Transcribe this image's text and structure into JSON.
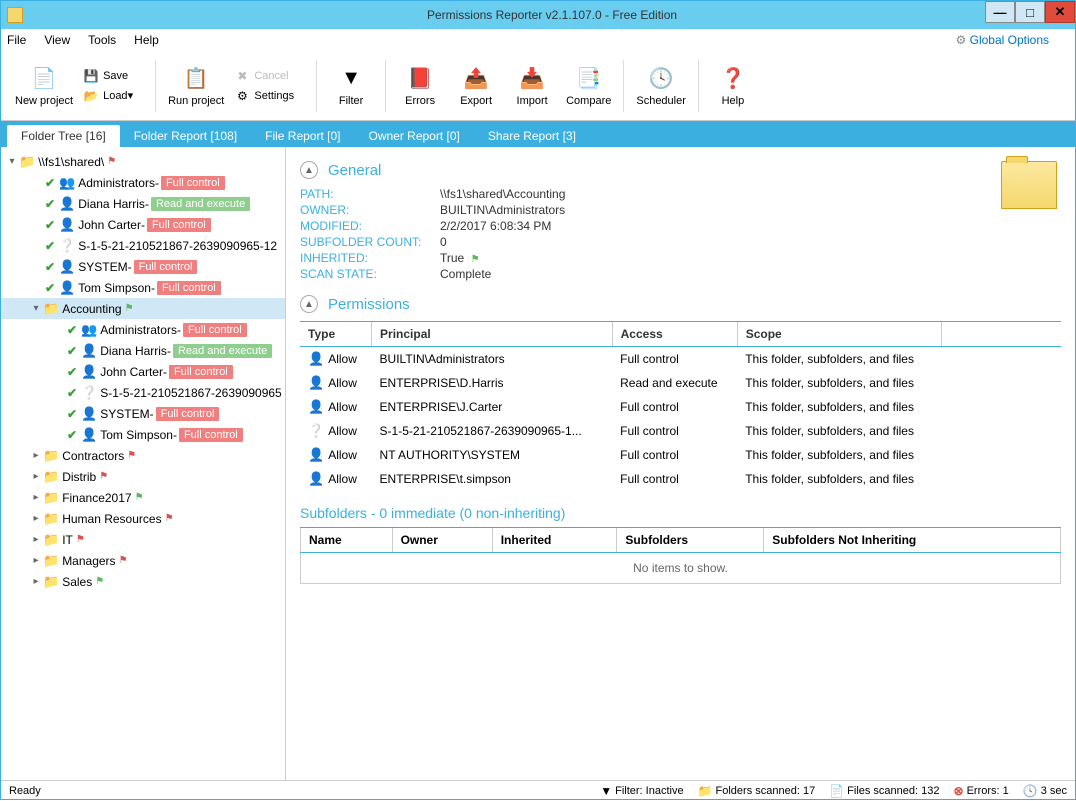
{
  "window": {
    "title": "Permissions Reporter v2.1.107.0 - Free Edition"
  },
  "menu": [
    "File",
    "View",
    "Tools",
    "Help"
  ],
  "globalOptions": "Global Options",
  "ribbon": {
    "newProject": "New project",
    "save": "Save",
    "load": "Load",
    "runProject": "Run project",
    "cancel": "Cancel",
    "settings": "Settings",
    "filter": "Filter",
    "errors": "Errors",
    "export": "Export",
    "import": "Import",
    "compare": "Compare",
    "scheduler": "Scheduler",
    "help": "Help"
  },
  "tabs": [
    {
      "label": "Folder Tree [16]",
      "active": true
    },
    {
      "label": "Folder Report [108]"
    },
    {
      "label": "File Report [0]"
    },
    {
      "label": "Owner Report [0]"
    },
    {
      "label": "Share Report [3]"
    }
  ],
  "tree": {
    "root": {
      "name": "\\\\fs1\\shared\\",
      "flag": "#d9534f"
    },
    "rootPerms": [
      {
        "name": "Administrators",
        "badge": "Full control",
        "cls": "perm-full",
        "type": "group"
      },
      {
        "name": "Diana Harris",
        "badge": "Read and execute",
        "cls": "perm-read",
        "type": "user"
      },
      {
        "name": "John Carter",
        "badge": "Full control",
        "cls": "perm-full",
        "type": "user"
      },
      {
        "name": "S-1-5-21-210521867-2639090965-12",
        "badge": "",
        "cls": "",
        "type": "unknown"
      },
      {
        "name": "SYSTEM",
        "badge": "Full control",
        "cls": "perm-full",
        "type": "user"
      },
      {
        "name": "Tom Simpson",
        "badge": "Full control",
        "cls": "perm-full",
        "type": "user"
      }
    ],
    "accounting": {
      "name": "Accounting",
      "flag": "#5cb85c"
    },
    "acctPerms": [
      {
        "name": "Administrators",
        "badge": "Full control",
        "cls": "perm-full",
        "type": "group"
      },
      {
        "name": "Diana Harris",
        "badge": "Read and execute",
        "cls": "perm-read",
        "type": "user"
      },
      {
        "name": "John Carter",
        "badge": "Full control",
        "cls": "perm-full",
        "type": "user"
      },
      {
        "name": "S-1-5-21-210521867-2639090965",
        "badge": "",
        "cls": "",
        "type": "unknown"
      },
      {
        "name": "SYSTEM",
        "badge": "Full control",
        "cls": "perm-full",
        "type": "user"
      },
      {
        "name": "Tom Simpson",
        "badge": "Full control",
        "cls": "perm-full",
        "type": "user"
      }
    ],
    "siblings": [
      {
        "name": "Contractors",
        "flag": "#d9534f"
      },
      {
        "name": "Distrib",
        "flag": "#d9534f"
      },
      {
        "name": "Finance2017",
        "flag": "#5cb85c"
      },
      {
        "name": "Human Resources",
        "flag": "#d9534f"
      },
      {
        "name": "IT",
        "flag": "#d9534f"
      },
      {
        "name": "Managers",
        "flag": "#d9534f"
      },
      {
        "name": "Sales",
        "flag": "#5cb85c"
      }
    ]
  },
  "general": {
    "title": "General",
    "rows": [
      {
        "k": "PATH:",
        "v": "\\\\fs1\\shared\\Accounting"
      },
      {
        "k": "OWNER:",
        "v": "BUILTIN\\Administrators"
      },
      {
        "k": "MODIFIED:",
        "v": "2/2/2017 6:08:34 PM"
      },
      {
        "k": "SUBFOLDER COUNT:",
        "v": "0"
      },
      {
        "k": "INHERITED:",
        "v": "True"
      },
      {
        "k": "SCAN STATE:",
        "v": "Complete"
      }
    ]
  },
  "permissions": {
    "title": "Permissions",
    "headers": [
      "Type",
      "Principal",
      "Access",
      "Scope"
    ],
    "rows": [
      {
        "type": "Allow",
        "principal": "BUILTIN\\Administrators",
        "access": "Full control",
        "scope": "This folder, subfolders, and files"
      },
      {
        "type": "Allow",
        "principal": "ENTERPRISE\\D.Harris",
        "access": "Read and execute",
        "scope": "This folder, subfolders, and files"
      },
      {
        "type": "Allow",
        "principal": "ENTERPRISE\\J.Carter",
        "access": "Full control",
        "scope": "This folder, subfolders, and files"
      },
      {
        "type": "Allow",
        "principal": "S-1-5-21-210521867-2639090965-1...",
        "access": "Full control",
        "scope": "This folder, subfolders, and files",
        "unknown": true
      },
      {
        "type": "Allow",
        "principal": "NT AUTHORITY\\SYSTEM",
        "access": "Full control",
        "scope": "This folder, subfolders, and files"
      },
      {
        "type": "Allow",
        "principal": "ENTERPRISE\\t.simpson",
        "access": "Full control",
        "scope": "This folder, subfolders, and files"
      }
    ]
  },
  "subfolders": {
    "title": "Subfolders - 0 immediate (0 non-inheriting)",
    "headers": [
      "Name",
      "Owner",
      "Inherited",
      "Subfolders",
      "Subfolders Not Inheriting"
    ],
    "empty": "No items to show."
  },
  "status": {
    "ready": "Ready",
    "filter": "Filter: Inactive",
    "folders": "Folders scanned: 17",
    "files": "Files scanned: 132",
    "errors": "Errors: 1",
    "time": "3 sec"
  }
}
